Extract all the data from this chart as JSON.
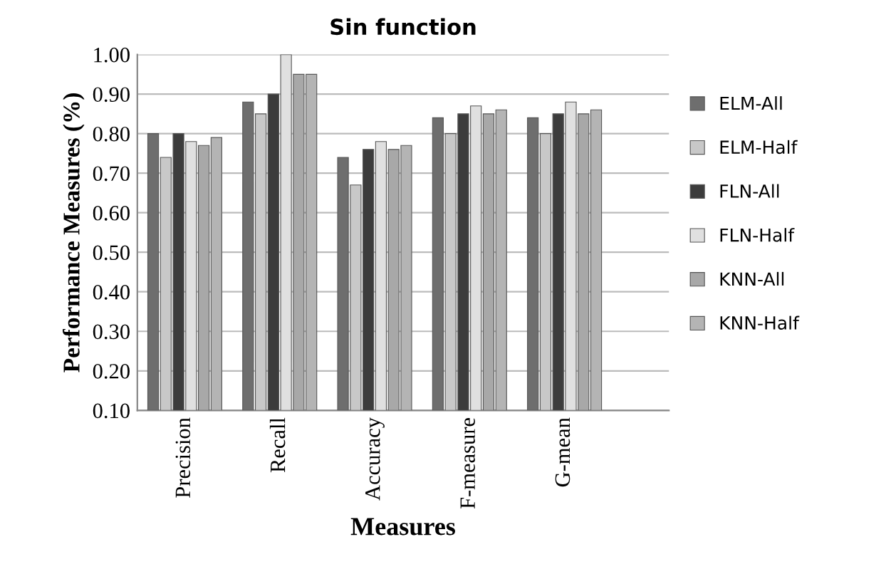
{
  "chart_data": {
    "type": "bar",
    "title": "Sin function",
    "xlabel": "Measures",
    "ylabel": "Performance Measures (%)",
    "categories": [
      "Precision",
      "Recall",
      "Accuracy",
      "F-measure",
      "G-mean"
    ],
    "series": [
      {
        "name": "ELM-All",
        "color": "#6e6e6e",
        "values": [
          0.8,
          0.88,
          0.74,
          0.84,
          0.84
        ]
      },
      {
        "name": "ELM-Half",
        "color": "#c8c8c8",
        "values": [
          0.74,
          0.85,
          0.67,
          0.8,
          0.8
        ]
      },
      {
        "name": "FLN-All",
        "color": "#3c3c3c",
        "values": [
          0.8,
          0.9,
          0.76,
          0.85,
          0.85
        ]
      },
      {
        "name": "FLN-Half",
        "color": "#e0e0e0",
        "values": [
          0.78,
          1.0,
          0.78,
          0.87,
          0.88
        ]
      },
      {
        "name": "KNN-All",
        "color": "#a8a8a8",
        "values": [
          0.77,
          0.95,
          0.76,
          0.85,
          0.85
        ]
      },
      {
        "name": "KNN-Half",
        "color": "#b4b4b4",
        "values": [
          0.79,
          0.95,
          0.77,
          0.86,
          0.86
        ]
      }
    ],
    "ylim": [
      0.1,
      1.0
    ],
    "yticks": [
      {
        "value": 0.1,
        "label": "0.10"
      },
      {
        "value": 0.2,
        "label": "0.20"
      },
      {
        "value": 0.3,
        "label": "0.30"
      },
      {
        "value": 0.4,
        "label": "0.40"
      },
      {
        "value": 0.5,
        "label": "0.50"
      },
      {
        "value": 0.6,
        "label": "0.60"
      },
      {
        "value": 0.7,
        "label": "0.70"
      },
      {
        "value": 0.8,
        "label": "0.80"
      },
      {
        "value": 0.9,
        "label": "0.90"
      },
      {
        "value": 1.0,
        "label": "1.00"
      }
    ],
    "grid": "y",
    "legend": "right"
  }
}
